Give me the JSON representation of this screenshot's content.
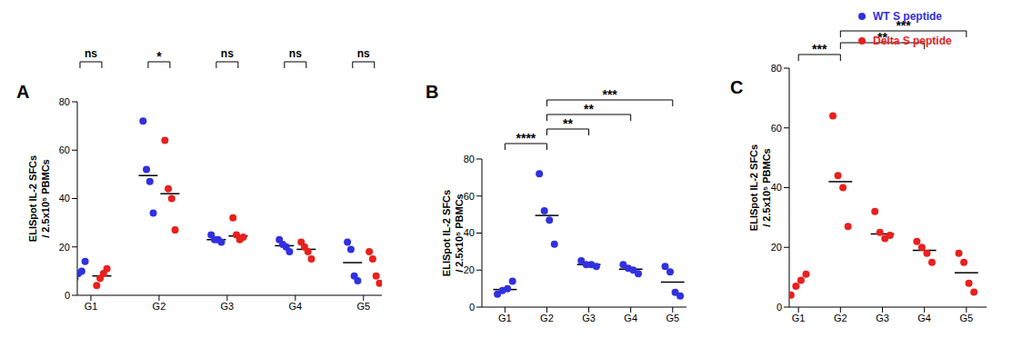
{
  "chart_data": [
    {
      "panel": "A",
      "type": "scatter",
      "marker": "circle",
      "legend": "upper right",
      "categories": [
        "G1",
        "G2",
        "G3",
        "G4",
        "G5"
      ],
      "ylabel": [
        "ELISpot IL-2 SFCs",
        "/ 2.5x10⁵ PBMCs"
      ],
      "ylim": [
        0,
        80
      ],
      "yticks": [
        0,
        20,
        40,
        60,
        80
      ],
      "series": [
        {
          "name": "WT S peptide",
          "color": "#3030e0",
          "values": [
            [
              7,
              9,
              10,
              14
            ],
            [
              72,
              52,
              47,
              34
            ],
            [
              25,
              23,
              23,
              22
            ],
            [
              23,
              21,
              20,
              18
            ],
            [
              22,
              19,
              8,
              6
            ]
          ]
        },
        {
          "name": "Delta S peptide",
          "color": "#e8201e",
          "values": [
            [
              4,
              7,
              9,
              11
            ],
            [
              64,
              44,
              40,
              27
            ],
            [
              32,
              25,
              23,
              24
            ],
            [
              22,
              20,
              18,
              15
            ],
            [
              18,
              15,
              8,
              5
            ]
          ]
        }
      ],
      "comparisons": [
        {
          "groups": [
            "G1",
            "G1"
          ],
          "label": "ns"
        },
        {
          "groups": [
            "G2",
            "G2"
          ],
          "label": "*"
        },
        {
          "groups": [
            "G3",
            "G3"
          ],
          "label": "ns"
        },
        {
          "groups": [
            "G4",
            "G4"
          ],
          "label": "ns"
        },
        {
          "groups": [
            "G5",
            "G5"
          ],
          "label": "ns"
        }
      ]
    },
    {
      "panel": "B",
      "type": "scatter",
      "marker": "circle",
      "categories": [
        "G1",
        "G2",
        "G3",
        "G4",
        "G5"
      ],
      "ylabel": [
        "ELISpot IL-2 SFCs",
        "/ 2.5x10⁵ PBMCs"
      ],
      "ylim": [
        0,
        80
      ],
      "yticks": [
        0,
        20,
        40,
        60,
        80
      ],
      "series": [
        {
          "name": "WT S peptide",
          "color": "#3030e0",
          "values": [
            [
              7,
              9,
              10,
              14
            ],
            [
              72,
              52,
              47,
              34
            ],
            [
              25,
              23,
              23,
              22
            ],
            [
              23,
              21,
              20,
              18
            ],
            [
              22,
              19,
              8,
              6
            ]
          ]
        }
      ],
      "comparisons": [
        {
          "groups": [
            "G1",
            "G2"
          ],
          "label": "****"
        },
        {
          "groups": [
            "G2",
            "G3"
          ],
          "label": "**"
        },
        {
          "groups": [
            "G2",
            "G4"
          ],
          "label": "**"
        },
        {
          "groups": [
            "G2",
            "G5"
          ],
          "label": "***"
        }
      ]
    },
    {
      "panel": "C",
      "type": "scatter",
      "marker": "circle",
      "categories": [
        "G1",
        "G2",
        "G3",
        "G4",
        "G5"
      ],
      "ylabel": [
        "ELISpot IL-2 SFCs",
        "/ 2.5x10⁵ PBMCs"
      ],
      "ylim": [
        0,
        80
      ],
      "yticks": [
        0,
        20,
        40,
        60,
        80
      ],
      "series": [
        {
          "name": "Delta S peptide",
          "color": "#e8201e",
          "values": [
            [
              4,
              7,
              9,
              11
            ],
            [
              64,
              44,
              40,
              27
            ],
            [
              32,
              25,
              23,
              24
            ],
            [
              22,
              20,
              18,
              15
            ],
            [
              18,
              15,
              8,
              5
            ]
          ]
        }
      ],
      "comparisons": [
        {
          "groups": [
            "G1",
            "G2"
          ],
          "label": "***"
        },
        {
          "groups": [
            "G2",
            "G4"
          ],
          "label": "**"
        },
        {
          "groups": [
            "G2",
            "G5"
          ],
          "label": "***"
        }
      ]
    }
  ]
}
